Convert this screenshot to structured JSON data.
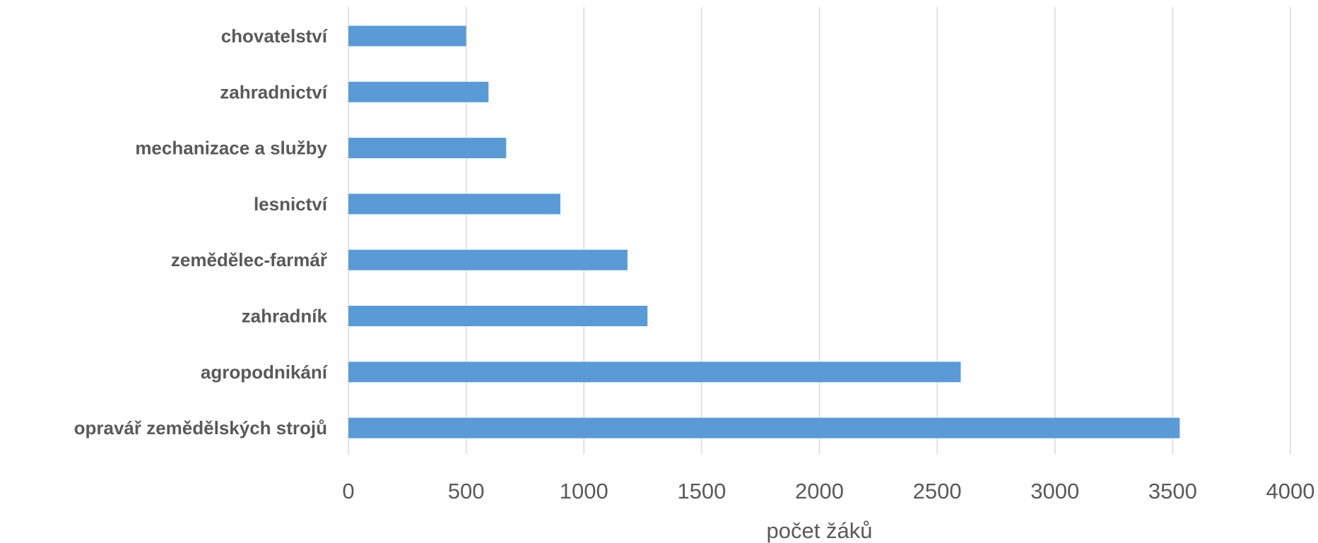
{
  "chart_data": {
    "type": "bar",
    "orientation": "horizontal",
    "categories": [
      "chovatelství",
      "zahradnictví",
      "mechanizace a služby",
      "lesnictví",
      "zemědělec-farmář",
      "zahradník",
      "agropodnikání",
      "opravář zemědělských strojů"
    ],
    "values": [
      500,
      595,
      670,
      900,
      1185,
      1270,
      2600,
      3530
    ],
    "xlabel": "počet žáků",
    "ylabel": "",
    "xlim": [
      0,
      4000
    ],
    "xticks": [
      0,
      500,
      1000,
      1500,
      2000,
      2500,
      3000,
      3500,
      4000
    ],
    "xtick_labels": [
      "0",
      "500",
      "1000",
      "1500",
      "2000",
      "2500",
      "3000",
      "3500",
      "4000"
    ],
    "grid": "vertical",
    "legend": "none",
    "bar_color": "#5b9bd5",
    "grid_color": "#d9d9d9",
    "text_color": "#595959"
  }
}
